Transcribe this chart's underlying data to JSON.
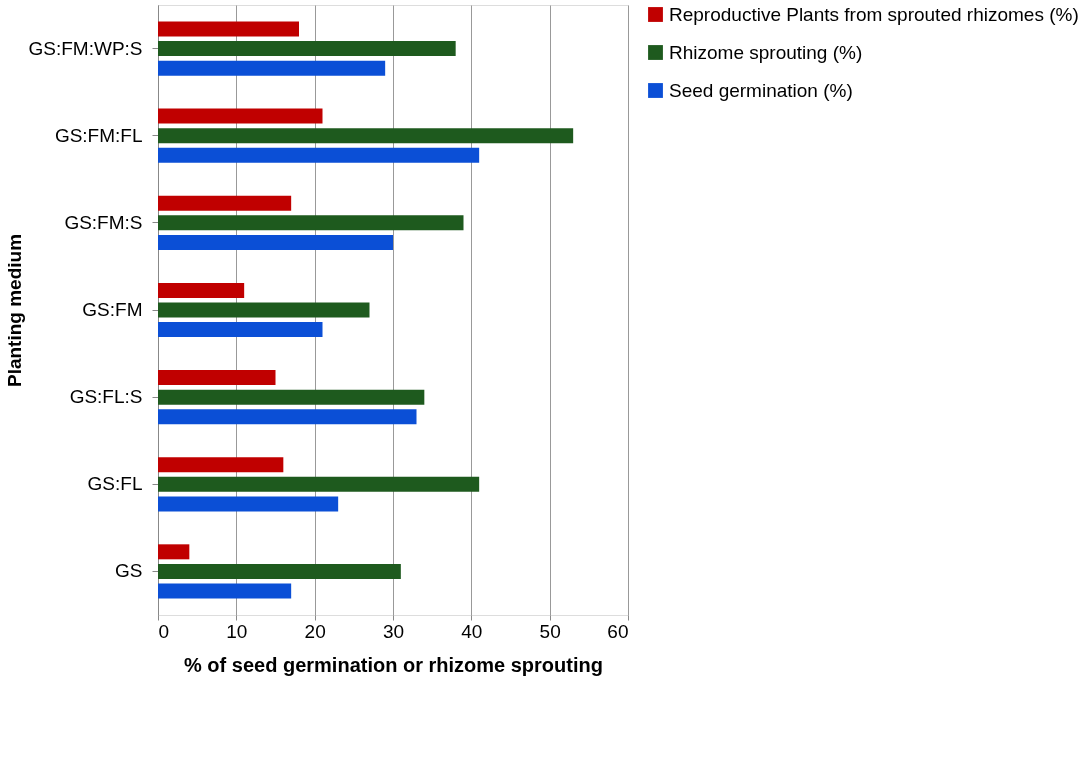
{
  "chart_data": {
    "type": "bar",
    "orientation": "horizontal",
    "xlabel": "% of seed  germination or rhizome sprouting",
    "ylabel": "Planting medium",
    "categories": [
      "GS:FM:WP:S",
      "GS:FM:FL",
      "GS:FM:S",
      "GS:FM",
      "GS:FL:S",
      "GS:FL",
      "GS"
    ],
    "series": [
      {
        "name": "Reproductive Plants from sprouted rhizomes (%)",
        "color": "#c00000",
        "values": [
          18,
          21,
          17,
          11,
          15,
          16,
          4
        ]
      },
      {
        "name": "Rhizome sprouting (%)",
        "color": "#1e5a1e",
        "values": [
          38,
          53,
          39,
          27,
          34,
          41,
          31
        ]
      },
      {
        "name": "Seed germination (%)",
        "color": "#0b4fd6",
        "values": [
          29,
          41,
          30,
          21,
          33,
          23,
          17
        ]
      }
    ],
    "xlim": [
      0,
      60
    ],
    "xticks": [
      0,
      10,
      20,
      30,
      40,
      50,
      60
    ],
    "grid": "x",
    "legend": "right"
  }
}
